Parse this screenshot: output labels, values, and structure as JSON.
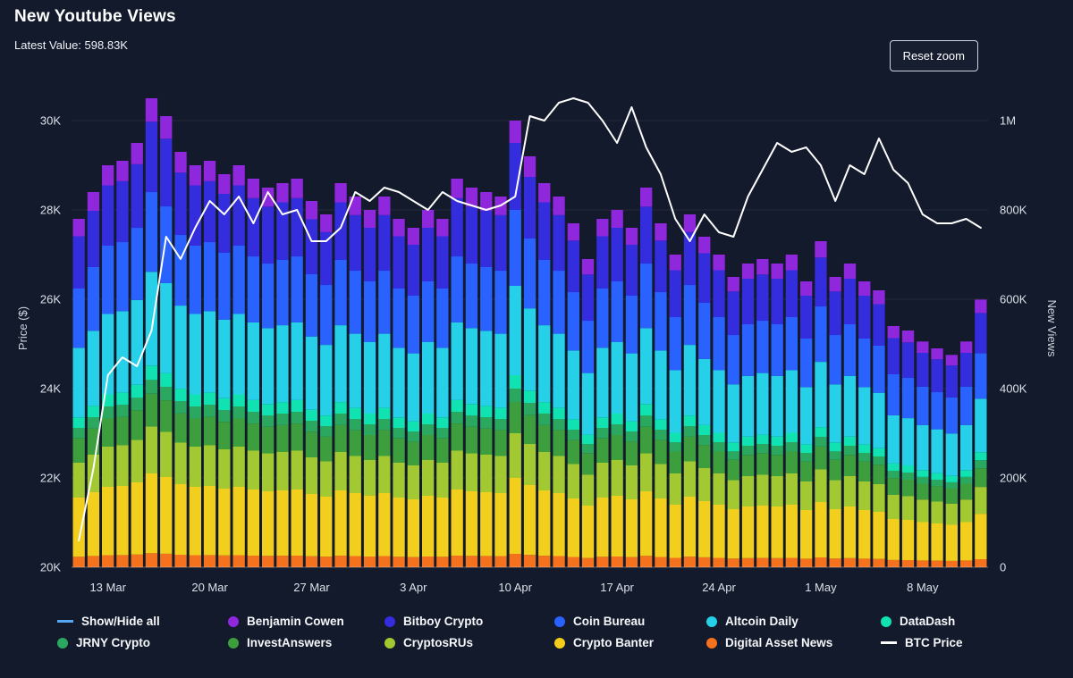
{
  "header": {
    "title": "New Youtube Views",
    "subtitle": "Latest Value: 598.83K"
  },
  "controls": {
    "reset_zoom": "Reset zoom"
  },
  "colors": {
    "background": "#131a2b",
    "grid": "rgba(255,255,255,0.08)",
    "baseline": "rgba(255,255,255,0.3)",
    "axis_text": "#dbe0e8",
    "btc_line": "#ffffff",
    "show_hide_line": "#55a7f3"
  },
  "chart_data": {
    "type": "bar",
    "stacked": true,
    "overlay_line": true,
    "title": "New Youtube Views",
    "latest_value": "598.83K",
    "n_bars": 63,
    "values_unit": "thousand views",
    "x_axis": {
      "tick_labels": [
        "13 Mar",
        "20 Mar",
        "27 Mar",
        "3 Apr",
        "10 Apr",
        "17 Apr",
        "24 Apr",
        "1 May",
        "8 May"
      ],
      "tick_indices": [
        2,
        9,
        16,
        23,
        30,
        37,
        44,
        51,
        58
      ]
    },
    "left_axis": {
      "label": "Price ($)",
      "unit": "thousand USD",
      "tick_labels": [
        "20K",
        "22K",
        "24K",
        "26K",
        "28K",
        "30K"
      ],
      "tick_values": [
        20,
        22,
        24,
        26,
        28,
        30
      ]
    },
    "right_axis": {
      "label": "New Views",
      "unit": "thousand views",
      "tick_labels": [
        "0",
        "200K",
        "400K",
        "600K",
        "800K",
        "1M"
      ],
      "tick_values": [
        0,
        200,
        400,
        600,
        800,
        1000
      ]
    },
    "series": [
      {
        "name": "Digital Asset News",
        "slug": "digital-asset-news",
        "color": "#f4711d",
        "values": [
          23.4,
          25.2,
          27,
          27.3,
          28.5,
          31.5,
          30.3,
          27.9,
          27,
          27.3,
          26.4,
          27,
          26.1,
          25.5,
          25.8,
          26.1,
          24.6,
          23.7,
          25.8,
          24.9,
          24,
          24.9,
          23.4,
          22.8,
          24,
          23.4,
          26.1,
          25.5,
          25.2,
          24.9,
          30,
          27.6,
          25.8,
          24.9,
          23.1,
          20.7,
          23.4,
          24,
          22.8,
          25.5,
          23.1,
          21,
          23.7,
          22.2,
          21,
          19.5,
          20.4,
          20.7,
          20.4,
          21,
          19.2,
          21.9,
          19.5,
          20.4,
          19.2,
          18.6,
          16.2,
          15.9,
          15.2,
          14.7,
          14.3,
          15.2,
          18
        ]
      },
      {
        "name": "Crypto Banter",
        "slug": "crypto-banter",
        "color": "#f3cf1d",
        "values": [
          132.6,
          142.8,
          153,
          154.7,
          161.5,
          178.5,
          171.7,
          158.1,
          153,
          154.7,
          149.6,
          153,
          147.9,
          144.5,
          146.2,
          147.9,
          139.4,
          134.3,
          146.2,
          141.1,
          136,
          141.1,
          132.6,
          129.2,
          136,
          132.6,
          147.9,
          144.5,
          142.8,
          141.1,
          170,
          156.4,
          146.2,
          141.1,
          130.9,
          117.3,
          132.6,
          136,
          129.2,
          144.5,
          130.9,
          119,
          134.3,
          125.8,
          119,
          110.5,
          115.6,
          117.3,
          115.6,
          119,
          108.8,
          124.1,
          110.5,
          115.6,
          108.8,
          105.4,
          91.8,
          90.1,
          85.9,
          83.3,
          80.8,
          85.9,
          101.8
        ]
      },
      {
        "name": "CryptosRUs",
        "slug": "cryptosrus",
        "color": "#a2c832",
        "values": [
          78,
          84,
          90,
          91,
          95,
          105,
          101,
          93,
          90,
          91,
          88,
          90,
          87,
          85,
          86,
          87,
          82,
          79,
          86,
          83,
          80,
          83,
          78,
          76,
          80,
          78,
          87,
          85,
          84,
          83,
          100,
          92,
          86,
          83,
          77,
          69,
          78,
          80,
          76,
          85,
          77,
          70,
          79,
          74,
          70,
          65,
          68,
          69,
          68,
          70,
          64,
          73,
          65,
          68,
          64,
          62,
          54,
          53,
          50.5,
          49,
          47.5,
          50.5,
          59.9
        ]
      },
      {
        "name": "InvestAnswers",
        "slug": "investanswers",
        "color": "#3c9e3d",
        "values": [
          54.6,
          58.8,
          63,
          63.7,
          66.5,
          73.5,
          70.7,
          65.1,
          63,
          63.7,
          61.6,
          63,
          60.9,
          59.5,
          60.2,
          60.9,
          57.4,
          55.3,
          60.2,
          58.1,
          56,
          58.1,
          54.6,
          53.2,
          56,
          54.6,
          60.9,
          59.5,
          58.8,
          58.1,
          70,
          64.4,
          60.2,
          58.1,
          53.9,
          48.3,
          54.6,
          56,
          53.2,
          59.5,
          53.9,
          49,
          55.3,
          51.8,
          49,
          45.5,
          47.6,
          48.3,
          47.6,
          49,
          44.8,
          51.1,
          45.5,
          47.6,
          44.8,
          43.4,
          37.8,
          37.1,
          35.4,
          34.3,
          33.3,
          35.4,
          41.9
        ]
      },
      {
        "name": "JRNY Crypto",
        "slug": "jrny-crypto",
        "color": "#2aa85f",
        "values": [
          23.4,
          25.2,
          27,
          27.3,
          28.5,
          31.5,
          30.3,
          27.9,
          27,
          27.3,
          26.4,
          27,
          26.1,
          25.5,
          25.8,
          26.1,
          24.6,
          23.7,
          25.8,
          24.9,
          24,
          24.9,
          23.4,
          22.8,
          24,
          23.4,
          26.1,
          25.5,
          25.2,
          24.9,
          30,
          27.6,
          25.8,
          24.9,
          23.1,
          20.7,
          23.4,
          24,
          22.8,
          25.5,
          23.1,
          21,
          23.7,
          22.2,
          21,
          19.5,
          20.4,
          20.7,
          20.4,
          21,
          19.2,
          21.9,
          19.5,
          20.4,
          19.2,
          18.6,
          16.2,
          15.9,
          15.2,
          14.7,
          14.3,
          15.2,
          18
        ]
      },
      {
        "name": "DataDash",
        "slug": "datadash",
        "color": "#10e2b2",
        "values": [
          23.4,
          25.2,
          27,
          27.3,
          28.5,
          31.5,
          30.3,
          27.9,
          27,
          27.3,
          26.4,
          27,
          26.1,
          25.5,
          25.8,
          26.1,
          24.6,
          23.7,
          25.8,
          24.9,
          24,
          24.9,
          23.4,
          22.8,
          24,
          23.4,
          26.1,
          25.5,
          25.2,
          24.9,
          30,
          27.6,
          25.8,
          24.9,
          23.1,
          20.7,
          23.4,
          24,
          22.8,
          25.5,
          23.1,
          21,
          23.7,
          22.2,
          21,
          19.5,
          20.4,
          20.7,
          20.4,
          21,
          19.2,
          21.9,
          19.5,
          20.4,
          19.2,
          18.6,
          16.2,
          15.9,
          15.2,
          14.7,
          14.3,
          15.2,
          18
        ]
      },
      {
        "name": "Altcoin Daily",
        "slug": "altcoin-daily",
        "color": "#25d0e8",
        "values": [
          156,
          168,
          180,
          182,
          190,
          210,
          202,
          186,
          180,
          182,
          176,
          180,
          174,
          170,
          172,
          174,
          164,
          158,
          172,
          166,
          160,
          166,
          156,
          152,
          160,
          156,
          174,
          170,
          168,
          166,
          200,
          184,
          172,
          166,
          154,
          138,
          156,
          160,
          152,
          170,
          154,
          140,
          158,
          148,
          140,
          130,
          136,
          138,
          136,
          140,
          128,
          146,
          130,
          136,
          128,
          124,
          108,
          106,
          101,
          98,
          95,
          101,
          119.8
        ]
      },
      {
        "name": "Coin Bureau",
        "slug": "coin-bureau",
        "color": "#2962ff",
        "values": [
          132.6,
          142.8,
          153,
          154.7,
          161.5,
          178.5,
          171.7,
          158.1,
          153,
          154.7,
          149.6,
          153,
          147.9,
          144.5,
          146.2,
          147.9,
          139.4,
          134.3,
          146.2,
          141.1,
          136,
          141.1,
          132.6,
          129.2,
          136,
          132.6,
          147.9,
          144.5,
          142.8,
          141.1,
          170,
          156.4,
          146.2,
          141.1,
          130.9,
          117.3,
          132.6,
          136,
          129.2,
          144.5,
          130.9,
          119,
          134.3,
          125.8,
          119,
          110.5,
          115.6,
          117.3,
          115.6,
          119,
          108.8,
          124.1,
          110.5,
          115.6,
          108.8,
          105.4,
          91.8,
          90.1,
          85.9,
          83.3,
          80.8,
          85.9,
          101.8
        ]
      },
      {
        "name": "Bitboy Crypto",
        "slug": "bitboy-crypto",
        "color": "#332ddd",
        "values": [
          117,
          126,
          135,
          136.5,
          142.5,
          157.5,
          151.5,
          139.5,
          135,
          136.5,
          132,
          135,
          130.5,
          127.5,
          129,
          130.5,
          123,
          118.5,
          129,
          124.5,
          120,
          124.5,
          117,
          114,
          120,
          117,
          130.5,
          127.5,
          126,
          124.5,
          150,
          138,
          129,
          124.5,
          115.5,
          103.5,
          117,
          120,
          114,
          127.5,
          115.5,
          105,
          118.5,
          111,
          105,
          97.5,
          102,
          103.5,
          102,
          105,
          96,
          109.5,
          97.5,
          102,
          96,
          93,
          81,
          79.5,
          75.8,
          73.5,
          71.3,
          75.8,
          89.9
        ]
      },
      {
        "name": "Benjamin Cowen",
        "slug": "benjamin-cowen",
        "color": "#8f27dd",
        "values": [
          39,
          42,
          45,
          45.5,
          47.5,
          52.5,
          50.5,
          46.5,
          45,
          45.5,
          44,
          45,
          43.5,
          42.5,
          43,
          43.5,
          41,
          39.5,
          43,
          41.5,
          40,
          41.5,
          39,
          38,
          40,
          39,
          43.5,
          42.5,
          42,
          41.5,
          50,
          46,
          43,
          41.5,
          38.5,
          34.5,
          39,
          40,
          38,
          42.5,
          38.5,
          35,
          39.5,
          37,
          35,
          32.5,
          34,
          34.5,
          34,
          35,
          32,
          36.5,
          32.5,
          34,
          32,
          31,
          27,
          26.5,
          25.3,
          24.5,
          23.8,
          25.3,
          30
        ]
      }
    ],
    "line_series": {
      "name": "BTC Price",
      "slug": "btc-price",
      "color": "#ffffff",
      "axis": "left",
      "unit": "thousand USD",
      "values": [
        20.6,
        22.2,
        24.3,
        24.7,
        24.5,
        25.3,
        27.4,
        26.9,
        27.6,
        28.2,
        27.9,
        28.3,
        27.7,
        28.4,
        27.9,
        28.0,
        27.3,
        27.3,
        27.6,
        28.4,
        28.2,
        28.5,
        28.4,
        28.2,
        28.0,
        28.4,
        28.2,
        28.1,
        28.0,
        28.1,
        28.3,
        30.1,
        30.0,
        30.4,
        30.5,
        30.4,
        30.0,
        29.5,
        30.3,
        29.4,
        28.8,
        27.8,
        27.3,
        27.9,
        27.5,
        27.4,
        28.3,
        28.9,
        29.5,
        29.3,
        29.4,
        29.0,
        28.2,
        29.0,
        28.8,
        29.6,
        28.9,
        28.6,
        27.9,
        27.7,
        27.7,
        27.8,
        27.6
      ]
    },
    "legend": [
      {
        "label": "Show/Hide all",
        "slug": "show-hide-all",
        "marker": "line",
        "color": "#55a7f3"
      },
      {
        "label": "Benjamin Cowen",
        "slug": "benjamin-cowen",
        "marker": "circle",
        "color": "#8f27dd"
      },
      {
        "label": "Bitboy Crypto",
        "slug": "bitboy-crypto",
        "marker": "circle",
        "color": "#332ddd"
      },
      {
        "label": "Coin Bureau",
        "slug": "coin-bureau",
        "marker": "circle",
        "color": "#2962ff"
      },
      {
        "label": "Altcoin Daily",
        "slug": "altcoin-daily",
        "marker": "circle",
        "color": "#25d0e8"
      },
      {
        "label": "DataDash",
        "slug": "datadash",
        "marker": "circle",
        "color": "#10e2b2"
      },
      {
        "label": "JRNY Crypto",
        "slug": "jrny-crypto",
        "marker": "circle",
        "color": "#2aa85f"
      },
      {
        "label": "InvestAnswers",
        "slug": "investanswers",
        "marker": "circle",
        "color": "#3c9e3d"
      },
      {
        "label": "CryptosRUs",
        "slug": "cryptosrus",
        "marker": "circle",
        "color": "#a2c832"
      },
      {
        "label": "Crypto Banter",
        "slug": "crypto-banter",
        "marker": "circle",
        "color": "#f3cf1d"
      },
      {
        "label": "Digital Asset News",
        "slug": "digital-asset-news",
        "marker": "circle",
        "color": "#f4711d"
      },
      {
        "label": "BTC Price",
        "slug": "btc-price",
        "marker": "line",
        "color": "#ffffff"
      }
    ]
  }
}
